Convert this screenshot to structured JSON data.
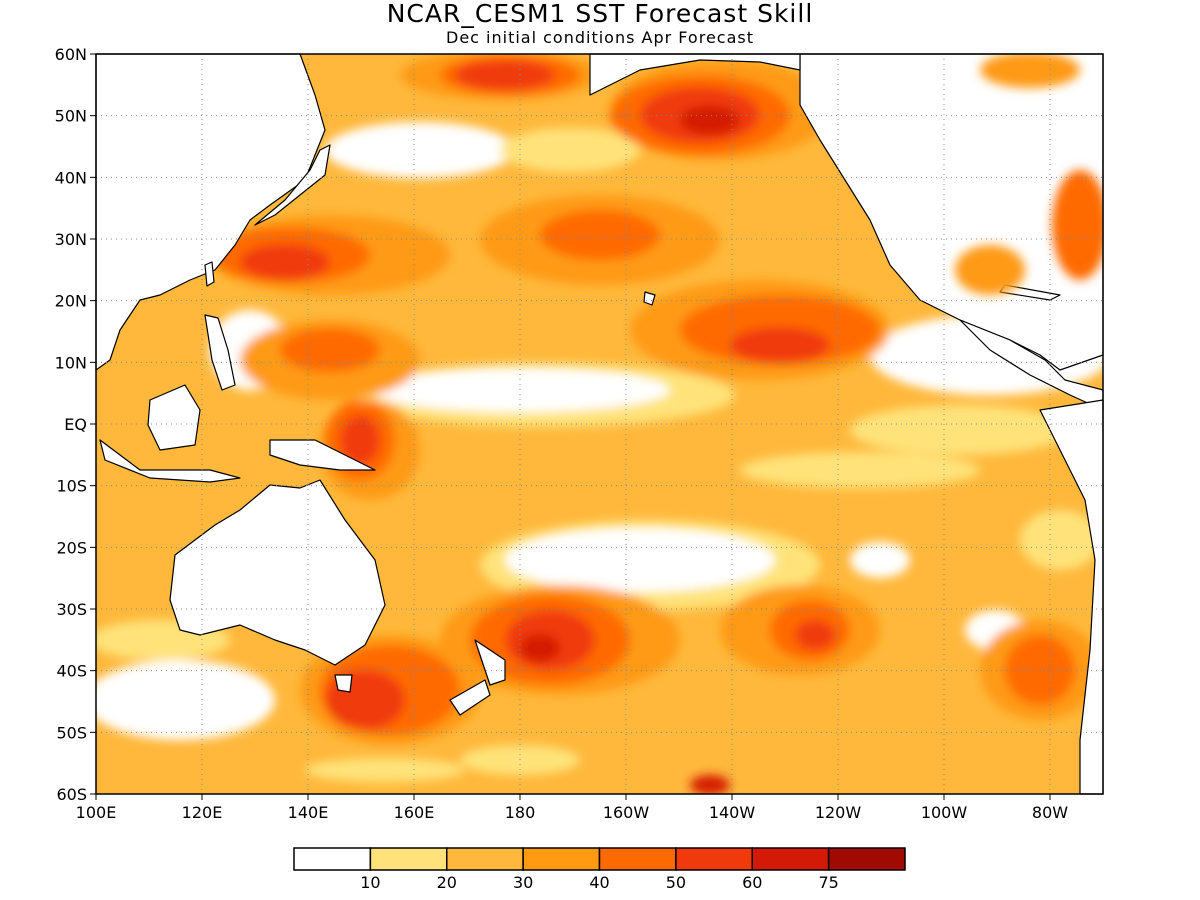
{
  "title": "NCAR_CESM1 SST Forecast Skill",
  "subtitle": "Dec initial conditions  Apr Forecast",
  "map": {
    "lon_range": [
      100,
      290
    ],
    "lat_range": [
      -60,
      60
    ],
    "lat_labels": [
      "60N",
      "50N",
      "40N",
      "30N",
      "20N",
      "10N",
      "EQ",
      "10S",
      "20S",
      "30S",
      "40S",
      "50S",
      "60S"
    ],
    "lon_labels": [
      "100E",
      "120E",
      "140E",
      "160E",
      "180",
      "160W",
      "140W",
      "120W",
      "100W",
      "80W"
    ],
    "grid": "dotted"
  },
  "legend": {
    "labels": [
      "10",
      "20",
      "30",
      "40",
      "50",
      "60",
      "75"
    ],
    "colors": [
      "#ffffff",
      "#ffe37a",
      "#ffb83c",
      "#ff9a12",
      "#ff6a00",
      "#f03a0c",
      "#d41a06",
      "#a00a00"
    ]
  },
  "chart_data": {
    "type": "heatmap",
    "title": "NCAR_CESM1 SST Forecast Skill",
    "subtitle": "Dec initial conditions  Apr Forecast",
    "x": "longitude",
    "y": "latitude",
    "xlim": [
      100,
      290
    ],
    "ylim": [
      -60,
      60
    ],
    "levels": [
      10,
      20,
      30,
      40,
      50,
      60,
      75
    ],
    "regions": [
      {
        "lon": 175,
        "lat": 27,
        "skill": 45
      },
      {
        "lon": 140,
        "lat": 25,
        "skill": 55
      },
      {
        "lon": 210,
        "lat": 52,
        "skill": 65
      },
      {
        "lon": 185,
        "lat": 55,
        "skill": 60
      },
      {
        "lon": 225,
        "lat": 12,
        "skill": 55
      },
      {
        "lon": 200,
        "lat": 25,
        "skill": 40
      },
      {
        "lon": 148,
        "lat": 5,
        "skill": 45
      },
      {
        "lon": 155,
        "lat": -5,
        "skill": 60
      },
      {
        "lon": 180,
        "lat": -38,
        "skill": 55
      },
      {
        "lon": 155,
        "lat": -45,
        "skill": 55
      },
      {
        "lon": 235,
        "lat": -35,
        "skill": 55
      },
      {
        "lon": 280,
        "lat": -40,
        "skill": 55
      },
      {
        "lon": 215,
        "lat": -60,
        "skill": 55
      },
      {
        "lon": 200,
        "lat": 8,
        "skill": 5
      },
      {
        "lon": 210,
        "lat": -22,
        "skill": 5
      },
      {
        "lon": 150,
        "lat": 44,
        "skill": 5
      },
      {
        "lon": 180,
        "lat": 45,
        "skill": 15
      },
      {
        "lon": 265,
        "lat": 5,
        "skill": 5
      },
      {
        "lon": 240,
        "lat": -5,
        "skill": 5
      },
      {
        "lon": 115,
        "lat": -45,
        "skill": 15
      },
      {
        "lon": 250,
        "lat": -20,
        "skill": 30
      },
      {
        "lon": 285,
        "lat": 30,
        "skill": 45
      }
    ]
  }
}
